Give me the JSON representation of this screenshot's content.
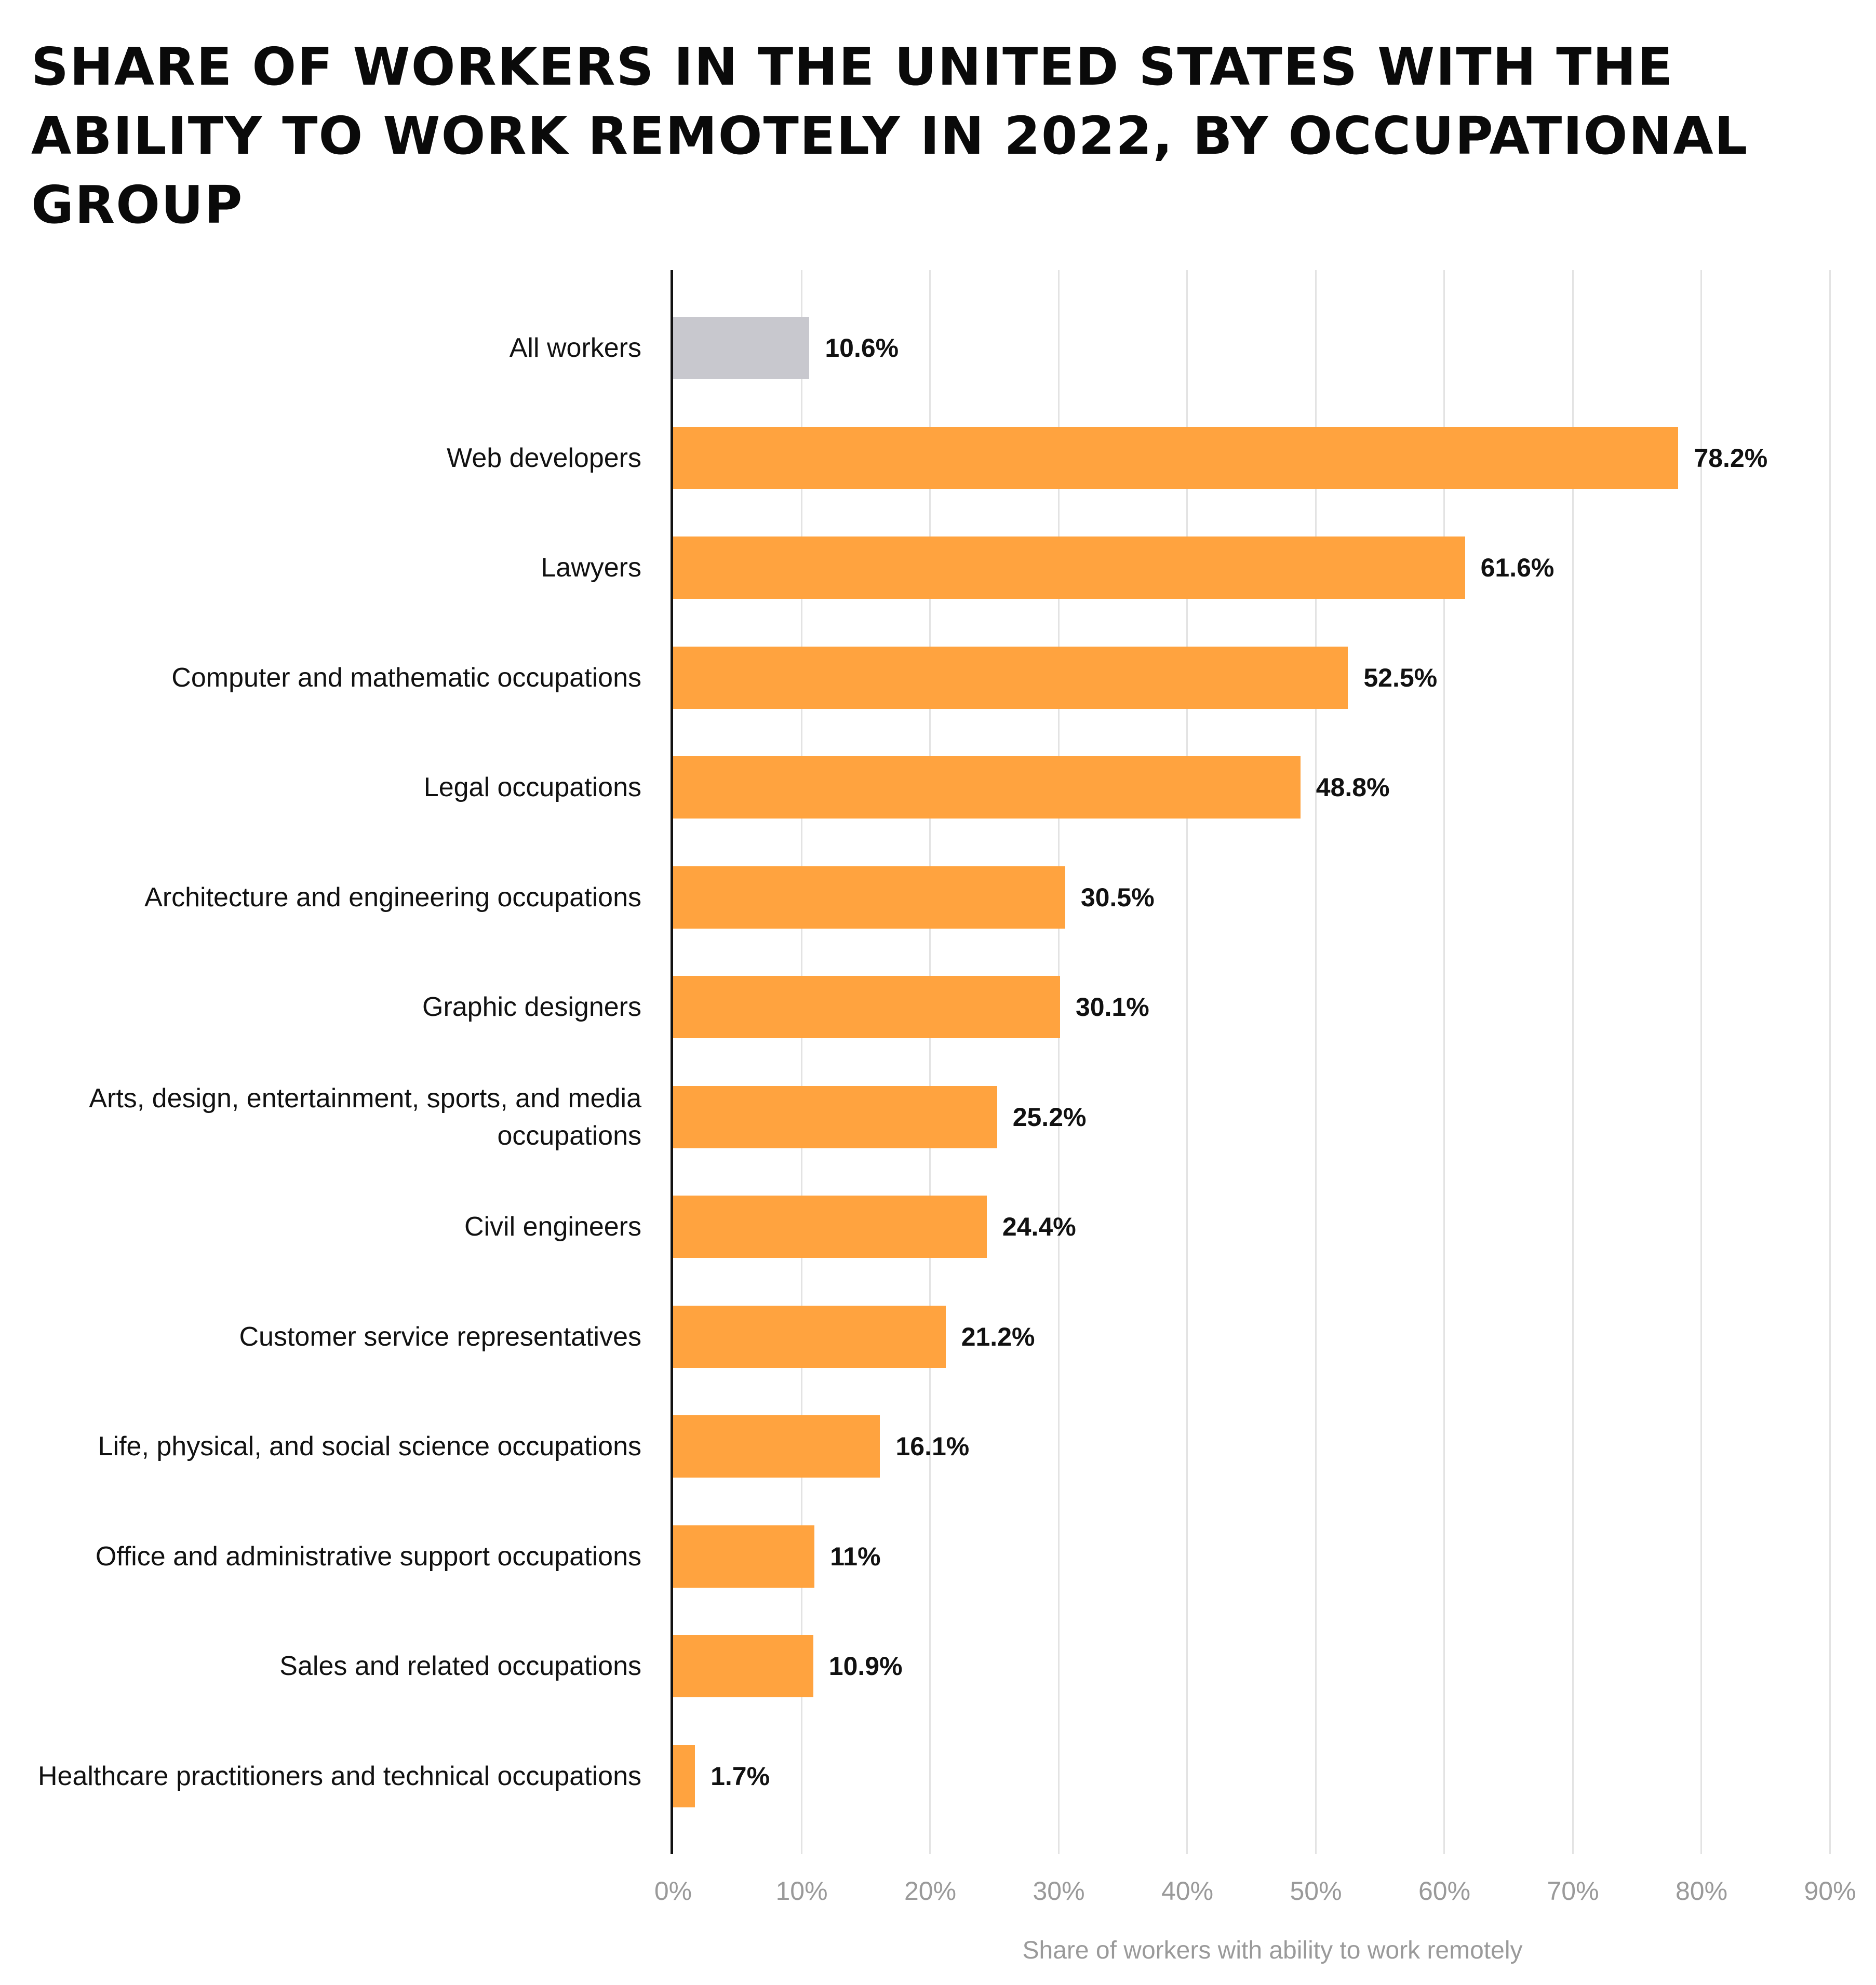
{
  "title": "SHARE OF WORKERS IN THE UNITED STATES WITH THE ABILITY TO WORK REMOTELY IN 2022, BY OCCUPATIONAL GROUP",
  "colors": {
    "highlight": "#ffa33f",
    "baseline": "#c8c8ce",
    "gridline": "#e3e3e3",
    "axis_text": "#9a9a9a"
  },
  "x_axis": {
    "title": "Share of workers with ability to work remotely",
    "ticks": [
      "0%",
      "10%",
      "20%",
      "30%",
      "40%",
      "50%",
      "60%",
      "70%",
      "80%",
      "90%"
    ]
  },
  "rows": [
    {
      "label": "All workers",
      "value": 10.6,
      "value_label": "10.6%",
      "kind": "baseline"
    },
    {
      "label": "Web developers",
      "value": 78.2,
      "value_label": "78.2%",
      "kind": "highlight"
    },
    {
      "label": "Lawyers",
      "value": 61.6,
      "value_label": "61.6%",
      "kind": "highlight"
    },
    {
      "label": "Computer and mathematic occupations",
      "value": 52.5,
      "value_label": "52.5%",
      "kind": "highlight"
    },
    {
      "label": "Legal occupations",
      "value": 48.8,
      "value_label": "48.8%",
      "kind": "highlight"
    },
    {
      "label": "Architecture and engineering occupations",
      "value": 30.5,
      "value_label": "30.5%",
      "kind": "highlight"
    },
    {
      "label": "Graphic designers",
      "value": 30.1,
      "value_label": "30.1%",
      "kind": "highlight"
    },
    {
      "label": "Arts, design, entertainment, sports, and media occupations",
      "value": 25.2,
      "value_label": "25.2%",
      "kind": "highlight"
    },
    {
      "label": "Civil engineers",
      "value": 24.4,
      "value_label": "24.4%",
      "kind": "highlight"
    },
    {
      "label": "Customer service representatives",
      "value": 21.2,
      "value_label": "21.2%",
      "kind": "highlight"
    },
    {
      "label": "Life, physical, and social science occupations",
      "value": 16.1,
      "value_label": "16.1%",
      "kind": "highlight"
    },
    {
      "label": "Office and administrative support occupations",
      "value": 11,
      "value_label": "11%",
      "kind": "highlight"
    },
    {
      "label": "Sales and related occupations",
      "value": 10.9,
      "value_label": "10.9%",
      "kind": "highlight"
    },
    {
      "label": "Healthcare practitioners and technical occupations",
      "value": 1.7,
      "value_label": "1.7%",
      "kind": "highlight"
    }
  ],
  "chart_data": {
    "type": "bar",
    "orientation": "horizontal",
    "title": "Share of workers in the United States with the ability to work remotely in 2022, by occupational group",
    "xlabel": "Share of workers with ability to work remotely",
    "ylabel": "",
    "xlim": [
      0,
      90
    ],
    "x_ticks": [
      "0%",
      "10%",
      "20%",
      "30%",
      "40%",
      "50%",
      "60%",
      "70%",
      "80%",
      "90%"
    ],
    "grid": "vertical gridlines at every 10%",
    "legend": null,
    "categories": [
      "All workers",
      "Web developers",
      "Lawyers",
      "Computer and mathematic occupations",
      "Legal occupations",
      "Architecture and engineering occupations",
      "Graphic designers",
      "Arts, design, entertainment, sports, and media occupations",
      "Civil engineers",
      "Customer service representatives",
      "Life, physical, and social science occupations",
      "Office and administrative support occupations",
      "Sales and related occupations",
      "Healthcare practitioners and technical occupations"
    ],
    "values": [
      10.6,
      78.2,
      61.6,
      52.5,
      48.8,
      30.5,
      30.1,
      25.2,
      24.4,
      21.2,
      16.1,
      11,
      10.9,
      1.7
    ],
    "unit": "%",
    "bar_colors": [
      "#c8c8ce",
      "#ffa33f",
      "#ffa33f",
      "#ffa33f",
      "#ffa33f",
      "#ffa33f",
      "#ffa33f",
      "#ffa33f",
      "#ffa33f",
      "#ffa33f",
      "#ffa33f",
      "#ffa33f",
      "#ffa33f",
      "#ffa33f"
    ]
  }
}
